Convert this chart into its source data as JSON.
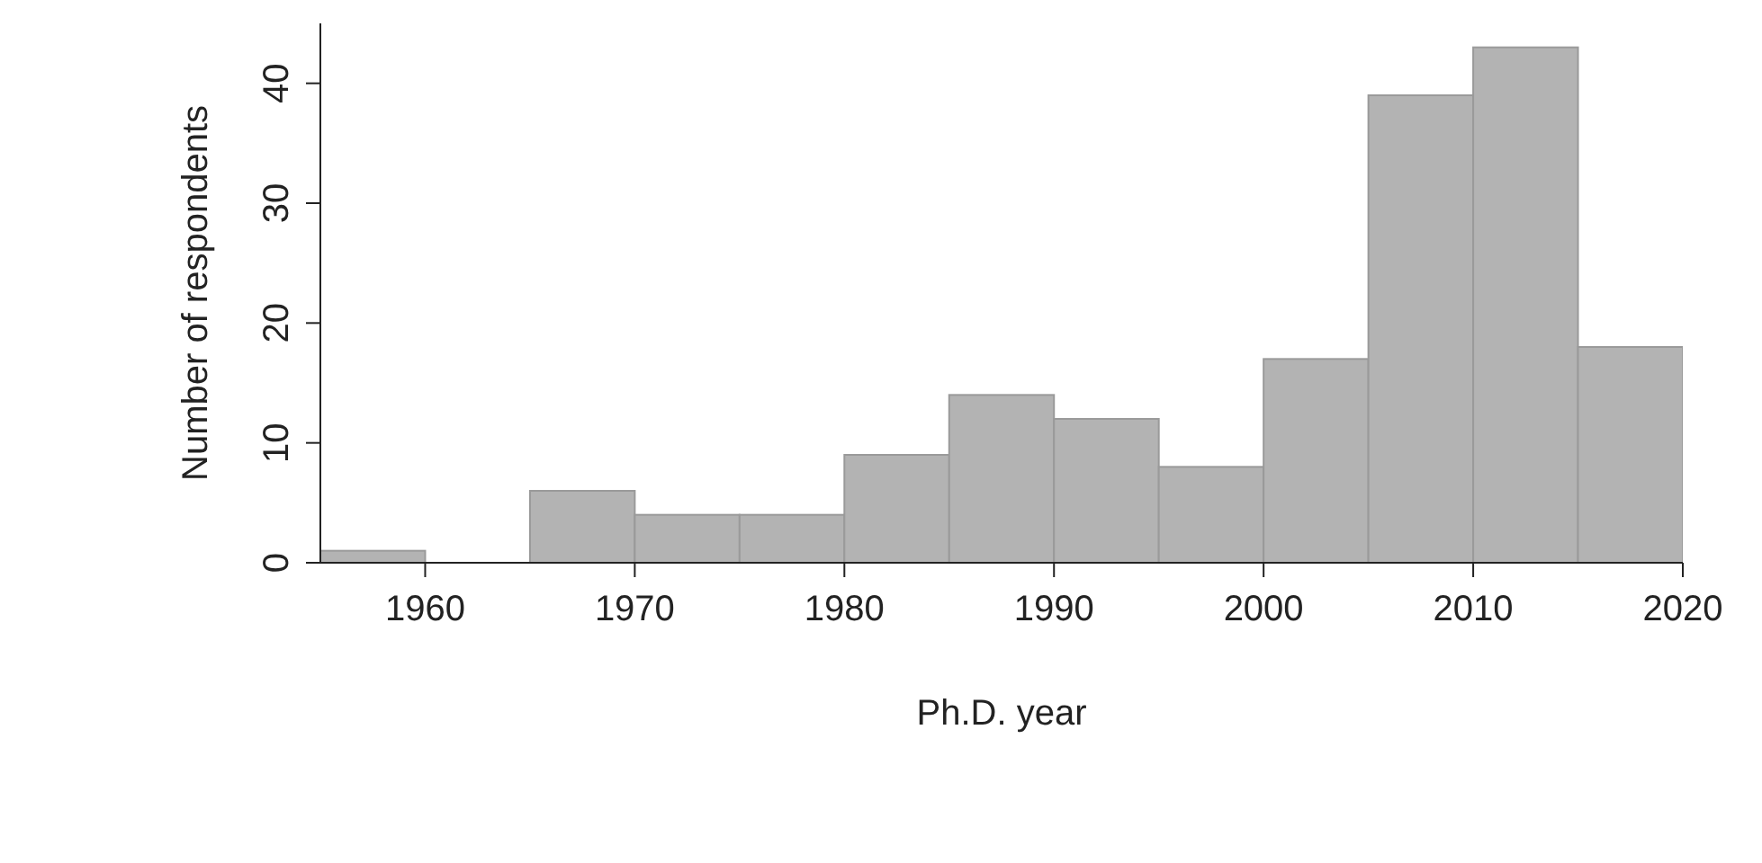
{
  "chart_data": {
    "type": "histogram",
    "xlabel": "Ph.D. year",
    "ylabel": "Number of respondents",
    "bins": [
      1955,
      1960,
      1965,
      1970,
      1975,
      1980,
      1985,
      1990,
      1995,
      2000,
      2005,
      2010,
      2015,
      2020
    ],
    "values": [
      1,
      0,
      6,
      4,
      4,
      9,
      14,
      12,
      8,
      17,
      39,
      43,
      18
    ],
    "color": "#b3b3b3",
    "xlim": [
      1955,
      2020
    ],
    "xticks": [
      1960,
      1970,
      1980,
      1990,
      2000,
      2010,
      2020
    ],
    "ylim": [
      0,
      45
    ],
    "yticks": [
      0,
      10,
      20,
      30,
      40
    ],
    "grid": false,
    "legend": false
  }
}
